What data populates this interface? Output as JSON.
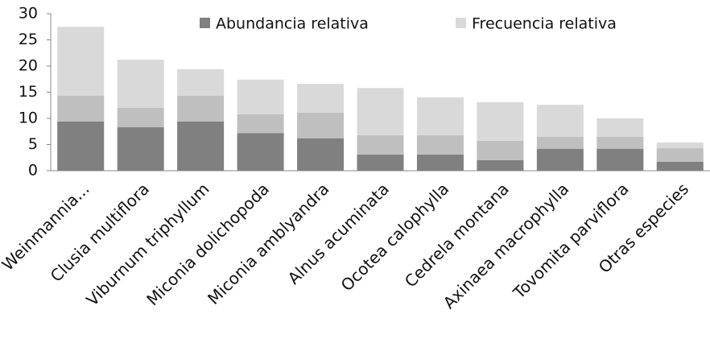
{
  "chart_data": {
    "type": "stacked_bar",
    "categories": [
      "Weinmannia...",
      "Clusia multiflora",
      "Viburnum triphyllum",
      "Miconia dolichopoda",
      "Miconia amblyandra",
      "Alnus acuminata",
      "Ocotea calophylla",
      "Cedrela montana",
      "Axinaea macrophylla",
      "Tovomita parviflora",
      "Otras especies"
    ],
    "series": [
      {
        "name": "Abundancia relativa",
        "color": "#808080",
        "values": [
          9.4,
          8.3,
          9.4,
          7.2,
          6.2,
          3.1,
          3.1,
          2.0,
          4.2,
          4.2,
          1.7
        ]
      },
      {
        "color": "#bfbfbf",
        "values": [
          4.9,
          3.7,
          4.9,
          3.6,
          4.9,
          3.7,
          3.7,
          3.7,
          2.3,
          2.3,
          2.6
        ]
      },
      {
        "name": "Frecuencia relativa",
        "color": "#d9d9d9",
        "values": [
          13.2,
          9.2,
          5.1,
          6.6,
          5.5,
          9.0,
          7.2,
          7.4,
          6.1,
          3.5,
          1.1
        ]
      }
    ],
    "ylim": [
      0,
      30
    ],
    "yticks": [
      0,
      5,
      10,
      15,
      20,
      25,
      30
    ],
    "legend": "top"
  }
}
